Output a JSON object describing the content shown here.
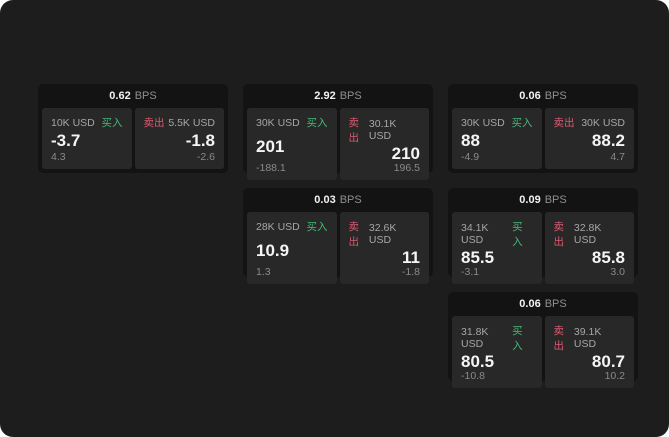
{
  "labels": {
    "buy": "买入",
    "sell": "卖出",
    "bps": "BPS"
  },
  "colors": {
    "buy_green": "#46b87a",
    "sell_red": "#d95a70",
    "window_bg": "#1d1d1d",
    "card_bg": "#131313",
    "panel_bg": "#282828"
  },
  "cards": [
    {
      "bps": "0.62",
      "buy": {
        "amount": "10K USD",
        "value": "-3.7",
        "sub": "4.3"
      },
      "sell": {
        "amount": "5.5K USD",
        "value": "-1.8",
        "sub": "-2.6"
      }
    },
    {
      "bps": "2.92",
      "buy": {
        "amount": "30K USD",
        "value": "201",
        "sub": "-188.1"
      },
      "sell": {
        "amount": "30.1K USD",
        "value": "210",
        "sub": "196.5"
      }
    },
    {
      "bps": "0.06",
      "buy": {
        "amount": "30K USD",
        "value": "88",
        "sub": "-4.9"
      },
      "sell": {
        "amount": "30K USD",
        "value": "88.2",
        "sub": "4.7"
      }
    },
    {
      "bps": "0.03",
      "buy": {
        "amount": "28K USD",
        "value": "10.9",
        "sub": "1.3"
      },
      "sell": {
        "amount": "32.6K USD",
        "value": "11",
        "sub": "-1.8"
      }
    },
    {
      "bps": "0.09",
      "buy": {
        "amount": "34.1K USD",
        "value": "85.5",
        "sub": "-3.1"
      },
      "sell": {
        "amount": "32.8K USD",
        "value": "85.8",
        "sub": "3.0"
      }
    },
    {
      "bps": "0.06",
      "buy": {
        "amount": "31.8K USD",
        "value": "80.5",
        "sub": "-10.8"
      },
      "sell": {
        "amount": "39.1K USD",
        "value": "80.7",
        "sub": "10.2"
      }
    }
  ]
}
